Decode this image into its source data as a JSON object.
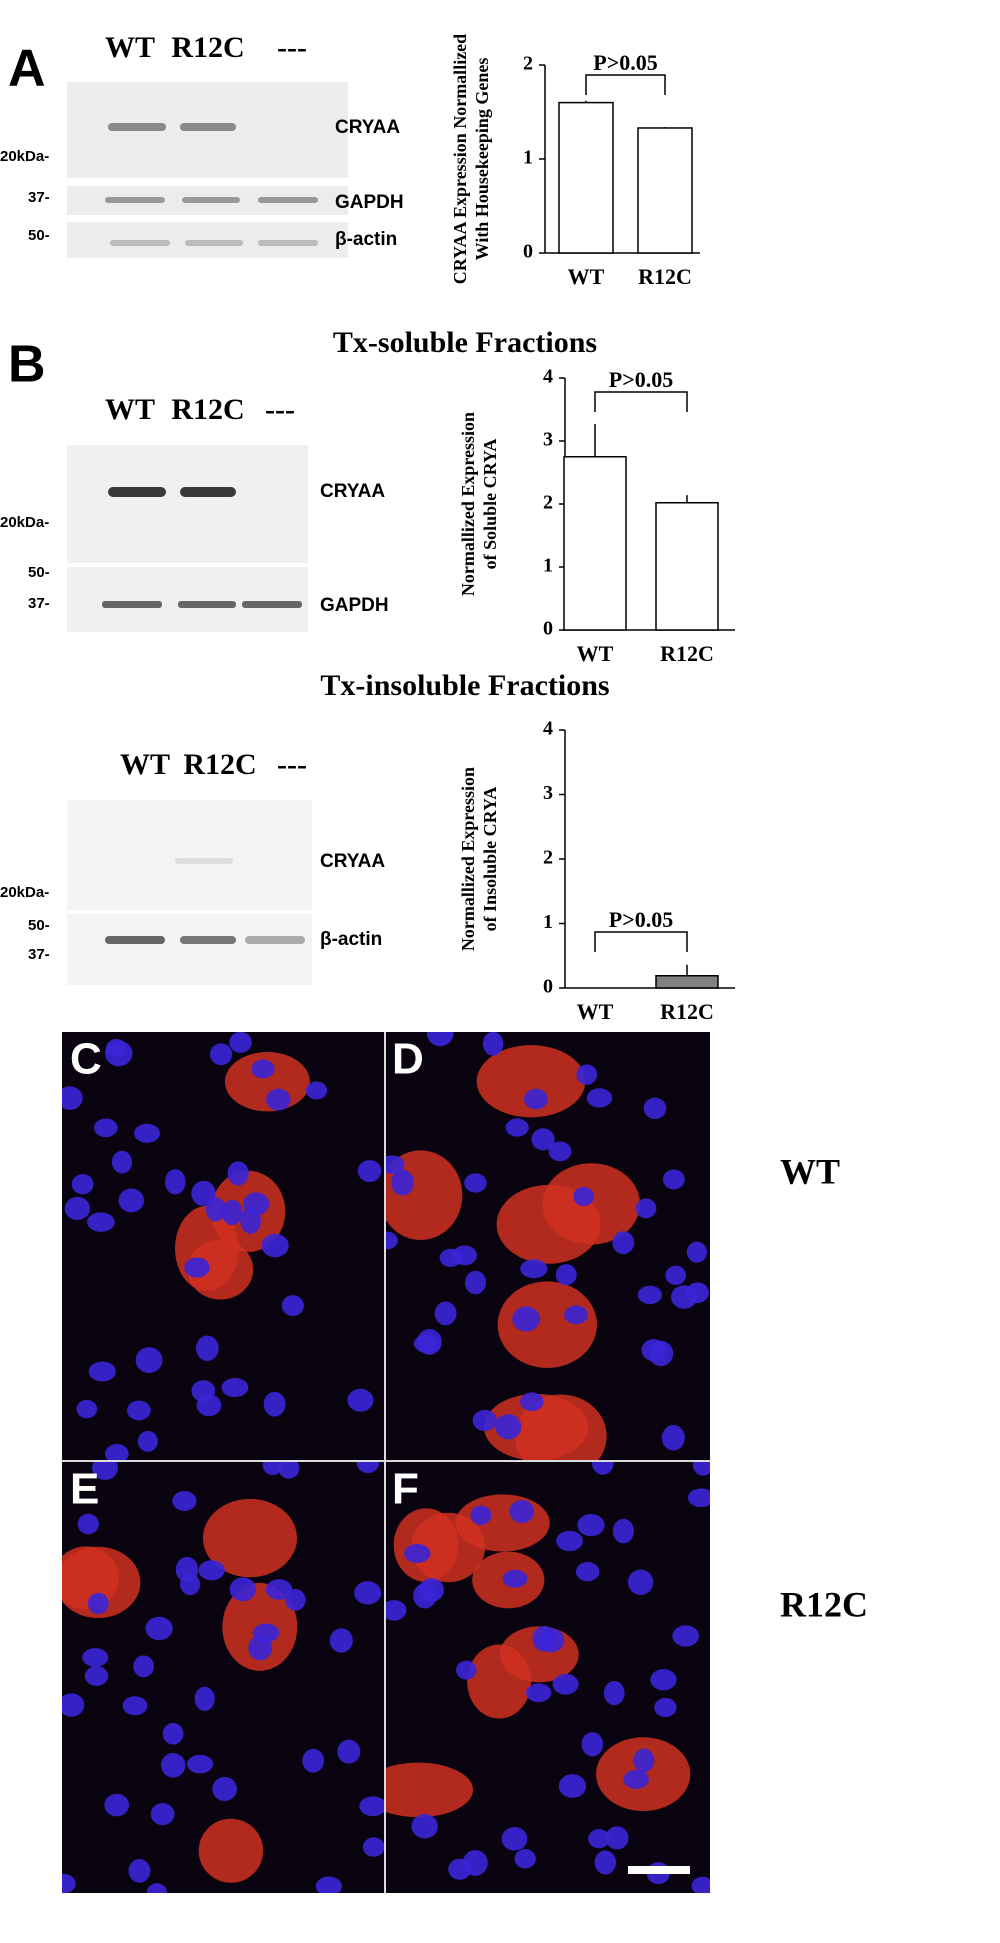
{
  "chart_data": [
    {
      "type": "bar",
      "ylabel": [
        "CRYAA Expression Normallized",
        "With Housekeeping Genes"
      ],
      "categories": [
        "WT",
        "R12C"
      ],
      "values": [
        1.6,
        1.33
      ],
      "errors": [
        0.02,
        0.01
      ],
      "colors": [
        "#ffffff",
        "#ffffff"
      ],
      "ylim": [
        0,
        2
      ],
      "yticks": [
        0,
        1,
        2
      ],
      "annotation": "P>0.05"
    },
    {
      "type": "bar",
      "title": "Tx-soluble Fractions",
      "ylabel": [
        "Normallized Expression",
        "of Soluble CRYA"
      ],
      "categories": [
        "WT",
        "R12C"
      ],
      "values": [
        2.75,
        2.02
      ],
      "errors": [
        0.52,
        0.12
      ],
      "colors": [
        "#ffffff",
        "#ffffff"
      ],
      "ylim": [
        0,
        4
      ],
      "yticks": [
        0,
        1,
        2,
        3,
        4
      ],
      "annotation": "P>0.05"
    },
    {
      "type": "bar",
      "title": "Tx-insoluble Fractions",
      "ylabel": [
        "Normallized Expression",
        "of Insoluble CRYA"
      ],
      "categories": [
        "WT",
        "R12C"
      ],
      "values": [
        0,
        0.19
      ],
      "errors": [
        0,
        0.17
      ],
      "colors": [
        "#ffffff",
        "#808080"
      ],
      "ylim": [
        0,
        4
      ],
      "yticks": [
        0,
        1,
        2,
        3,
        4
      ],
      "annotation": "P>0.05"
    }
  ],
  "figure": {
    "panel_labels": [
      "A",
      "B",
      "C",
      "D",
      "E",
      "F"
    ],
    "blots": [
      {
        "lanes": [
          "WT",
          "R12C",
          "---"
        ],
        "bands": [
          "CRYAA",
          "GAPDH",
          "β-actin"
        ],
        "markers": [
          "20kDa-",
          "37-",
          "50-"
        ]
      },
      {
        "lanes": [
          "WT",
          "R12C",
          "---"
        ],
        "bands": [
          "CRYAA",
          "GAPDH"
        ],
        "markers": [
          "20kDa-",
          "50-",
          "37-"
        ]
      },
      {
        "lanes": [
          "WT",
          "R12C",
          "---"
        ],
        "bands": [
          "CRYAA",
          "β-actin"
        ],
        "markers": [
          "20kDa-",
          "50-",
          "37-"
        ]
      }
    ],
    "image_rows": [
      "WT",
      "R12C"
    ]
  }
}
